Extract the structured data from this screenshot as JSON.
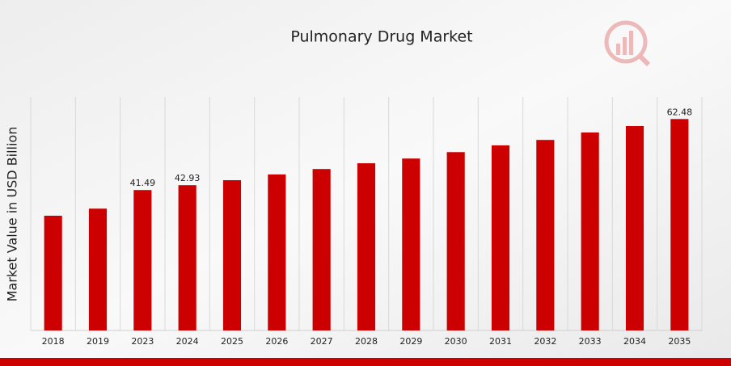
{
  "chart_data": {
    "type": "bar",
    "title": "Pulmonary Drug Market",
    "ylabel": "Market Value in USD Billion",
    "categories": [
      "2018",
      "2019",
      "2023",
      "2024",
      "2025",
      "2026",
      "2027",
      "2028",
      "2029",
      "2030",
      "2031",
      "2032",
      "2033",
      "2034",
      "2035"
    ],
    "values": [
      33.9,
      36.0,
      41.49,
      42.93,
      44.4,
      46.1,
      47.7,
      49.4,
      50.8,
      52.7,
      54.7,
      56.3,
      58.5,
      60.4,
      62.48
    ],
    "value_labels": [
      null,
      null,
      "41.49",
      "42.93",
      null,
      null,
      null,
      null,
      null,
      null,
      null,
      null,
      null,
      null,
      "62.48"
    ],
    "color": "#cc0000",
    "ylim": [
      0,
      69
    ],
    "grid": true
  }
}
